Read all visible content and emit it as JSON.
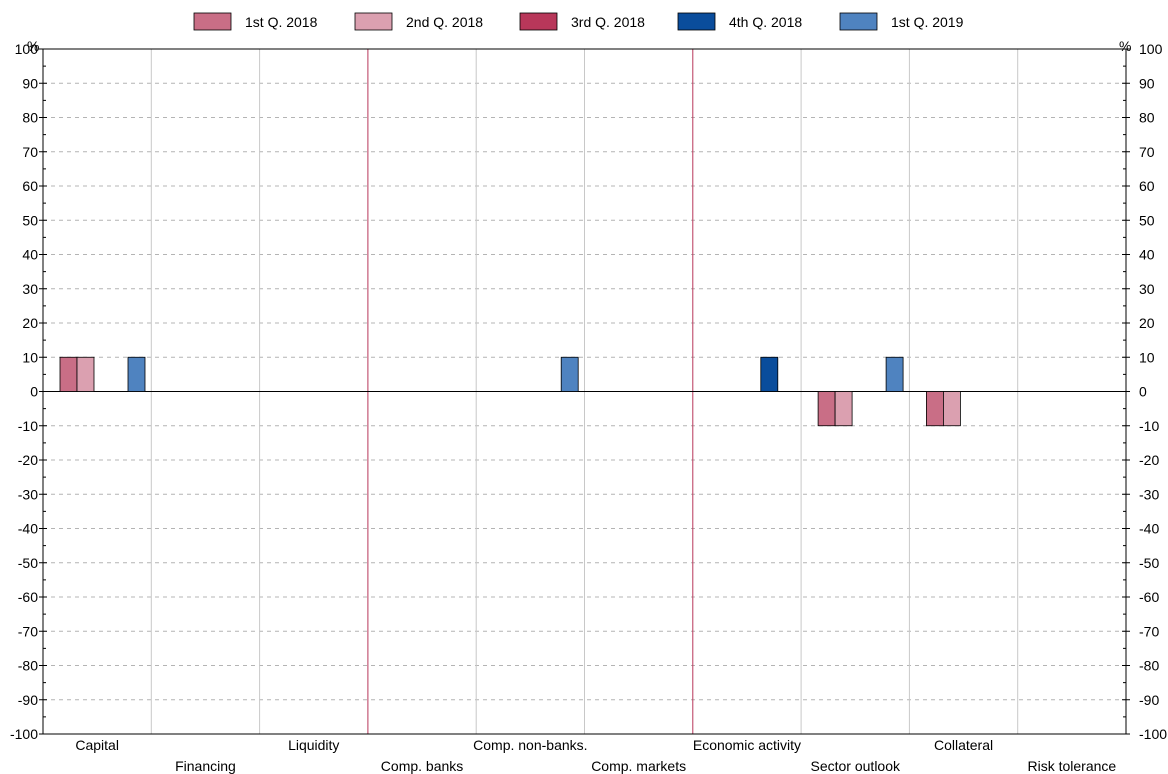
{
  "chart_data": {
    "type": "bar",
    "title": "",
    "xlabel": "",
    "ylabel": "%",
    "ylabel_right": "%",
    "ylim": [
      -100,
      100
    ],
    "ytick_step": 10,
    "grid": true,
    "legend_position": "top-center",
    "categories": [
      "Capital",
      "Financing",
      "Liquidity",
      "Comp. banks",
      "Comp. non-banks.",
      "Comp. markets",
      "Economic activity",
      "Sector outlook",
      "Collateral",
      "Risk tolerance"
    ],
    "group_separators_after": [
      2,
      5
    ],
    "series": [
      {
        "name": "1st Q. 2018",
        "color": "#c96e86",
        "values": [
          10,
          0,
          0,
          0,
          0,
          0,
          0,
          -10,
          -10,
          0
        ]
      },
      {
        "name": "2nd Q. 2018",
        "color": "#dba0b0",
        "values": [
          10,
          0,
          0,
          0,
          0,
          0,
          0,
          -10,
          -10,
          0
        ]
      },
      {
        "name": "3rd Q. 2018",
        "color": "#b8375a",
        "values": [
          0,
          0,
          0,
          0,
          0,
          0,
          0,
          0,
          0,
          0
        ]
      },
      {
        "name": "4th Q. 2018",
        "color": "#0a4d9c",
        "values": [
          0,
          0,
          0,
          0,
          0,
          0,
          10,
          0,
          0,
          0
        ]
      },
      {
        "name": "1st Q. 2019",
        "color": "#4f83c0",
        "values": [
          10,
          0,
          0,
          0,
          10,
          0,
          0,
          10,
          0,
          0
        ]
      }
    ],
    "colors": {
      "separator": "#b8375a",
      "category_divider": "#c8c8c8",
      "grid": "#b4b4b4",
      "axis": "#000000"
    }
  }
}
